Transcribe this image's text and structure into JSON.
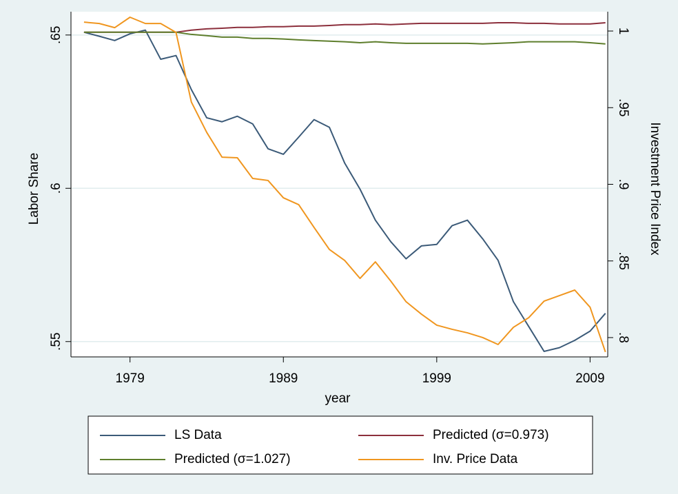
{
  "chart_data": {
    "type": "line",
    "x_label": "year",
    "y_label": "Labor Share",
    "y2_label": "Investment Price Index",
    "x": [
      1976,
      1977,
      1978,
      1979,
      1980,
      1981,
      1982,
      1983,
      1984,
      1985,
      1986,
      1987,
      1988,
      1989,
      1990,
      1991,
      1992,
      1993,
      1994,
      1995,
      1996,
      1997,
      1998,
      1999,
      2000,
      2001,
      2002,
      2003,
      2004,
      2005,
      2006,
      2007,
      2008,
      2009,
      2010
    ],
    "xlim": [
      1975.15,
      2010.15
    ],
    "xticks": [
      1979,
      1989,
      1999,
      2009
    ],
    "ylim": [
      0.545,
      0.6576
    ],
    "yticks": [
      {
        "value": 0.55,
        "label": ".55"
      },
      {
        "value": 0.6,
        "label": ".6"
      },
      {
        "value": 0.65,
        "label": ".65"
      }
    ],
    "y2lim": [
      0.7874,
      1.0126
    ],
    "y2ticks": [
      {
        "value": 0.8,
        "label": ".8"
      },
      {
        "value": 0.85,
        "label": ".85"
      },
      {
        "value": 0.9,
        "label": ".9"
      },
      {
        "value": 0.95,
        "label": ".95"
      },
      1
    ],
    "grid": true,
    "legend_position": "bottom",
    "series": [
      {
        "name": "LS Data",
        "color": "#3b5a78",
        "values": [
          0.6509,
          0.6496,
          0.6482,
          0.6504,
          0.6516,
          0.6421,
          0.6433,
          0.6322,
          0.623,
          0.6217,
          0.6235,
          0.621,
          0.6129,
          0.6111,
          0.6167,
          0.6224,
          0.6199,
          0.6082,
          0.5997,
          0.5896,
          0.5826,
          0.577,
          0.5812,
          0.5817,
          0.5878,
          0.5896,
          0.5835,
          0.5765,
          0.563,
          0.5549,
          0.5468,
          0.548,
          0.5504,
          0.5534,
          0.5592
        ]
      },
      {
        "name": "Predicted (σ=0.973)",
        "color": "#8c2f3c",
        "values": [
          0.6509,
          0.6509,
          0.6509,
          0.6509,
          0.6509,
          0.6509,
          0.6509,
          0.6516,
          0.652,
          0.6522,
          0.6525,
          0.6525,
          0.6527,
          0.6527,
          0.6529,
          0.6529,
          0.6531,
          0.6534,
          0.6534,
          0.6536,
          0.6534,
          0.6536,
          0.6538,
          0.6538,
          0.6538,
          0.6538,
          0.6538,
          0.654,
          0.654,
          0.6538,
          0.6538,
          0.6536,
          0.6536,
          0.6536,
          0.654
        ]
      },
      {
        "name": "Predicted (σ=1.027)",
        "color": "#5e7e2c",
        "values": [
          0.6509,
          0.6509,
          0.6509,
          0.6509,
          0.6509,
          0.6509,
          0.6509,
          0.6502,
          0.6498,
          0.6493,
          0.6493,
          0.6489,
          0.6489,
          0.6487,
          0.6484,
          0.6482,
          0.648,
          0.6478,
          0.6475,
          0.6478,
          0.6475,
          0.6473,
          0.6473,
          0.6473,
          0.6473,
          0.6473,
          0.6471,
          0.6473,
          0.6475,
          0.6478,
          0.6478,
          0.6478,
          0.6478,
          0.6475,
          0.6471
        ]
      },
      {
        "name": "Inv. Price Data",
        "color": "#f0961f",
        "axis": "y2",
        "values": [
          1.0058,
          1.0049,
          1.0022,
          1.009,
          1.0049,
          1.0049,
          0.9991,
          0.9537,
          0.9339,
          0.9177,
          0.9173,
          0.9038,
          0.9025,
          0.8912,
          0.8867,
          0.8719,
          0.8575,
          0.8503,
          0.8386,
          0.8494,
          0.8369,
          0.8234,
          0.8153,
          0.8081,
          0.8054,
          0.8031,
          0.8,
          0.7955,
          0.8067,
          0.813,
          0.8238,
          0.8274,
          0.831,
          0.8198,
          0.7906
        ]
      }
    ]
  }
}
